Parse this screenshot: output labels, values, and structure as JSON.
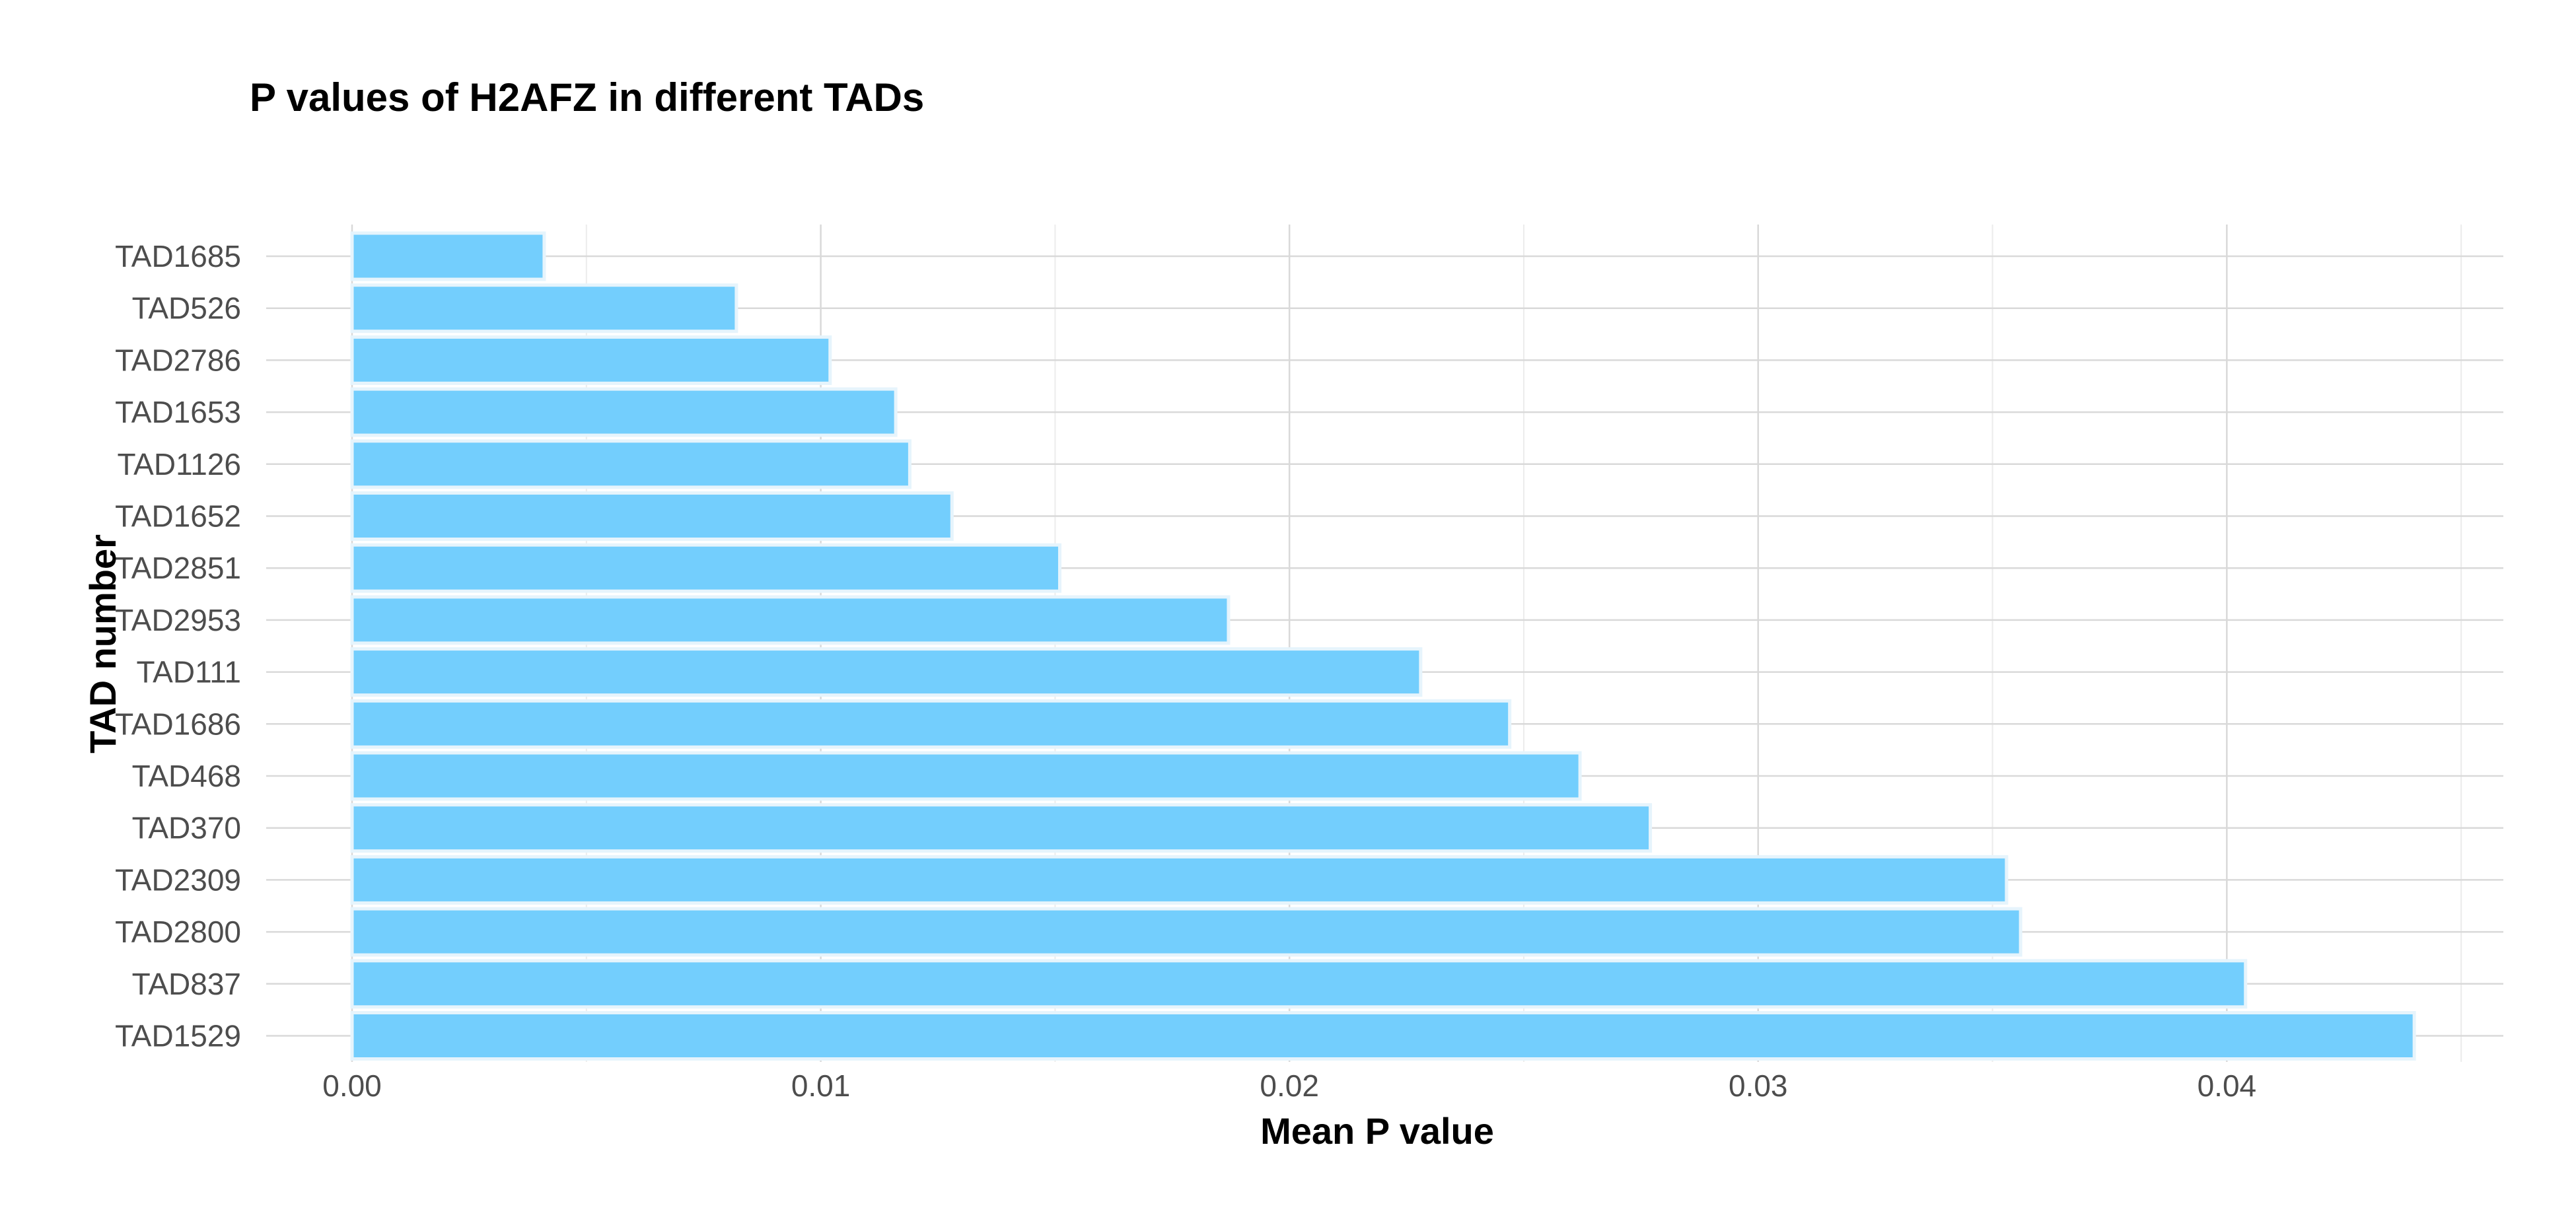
{
  "chart_data": {
    "type": "bar",
    "orientation": "horizontal",
    "title": "P values of H2AFZ in different TADs",
    "xlabel": "Mean P value",
    "ylabel": "TAD number",
    "categories": [
      "TAD1685",
      "TAD526",
      "TAD2786",
      "TAD1653",
      "TAD1126",
      "TAD1652",
      "TAD2851",
      "TAD2953",
      "TAD111",
      "TAD1686",
      "TAD468",
      "TAD370",
      "TAD2309",
      "TAD2800",
      "TAD837",
      "TAD1529"
    ],
    "values": [
      0.0041,
      0.0082,
      0.0102,
      0.0116,
      0.0119,
      0.0128,
      0.0151,
      0.0187,
      0.0228,
      0.0247,
      0.0262,
      0.0277,
      0.0353,
      0.0356,
      0.0404,
      0.044
    ],
    "xlim": [
      0,
      0.0459
    ],
    "xticks": [
      0.0,
      0.01,
      0.02,
      0.03,
      0.04
    ],
    "xtick_labels": [
      "0.00",
      "0.01",
      "0.02",
      "0.03",
      "0.04"
    ],
    "grid": true,
    "legend": "none",
    "bar_color": "#73cefd"
  }
}
